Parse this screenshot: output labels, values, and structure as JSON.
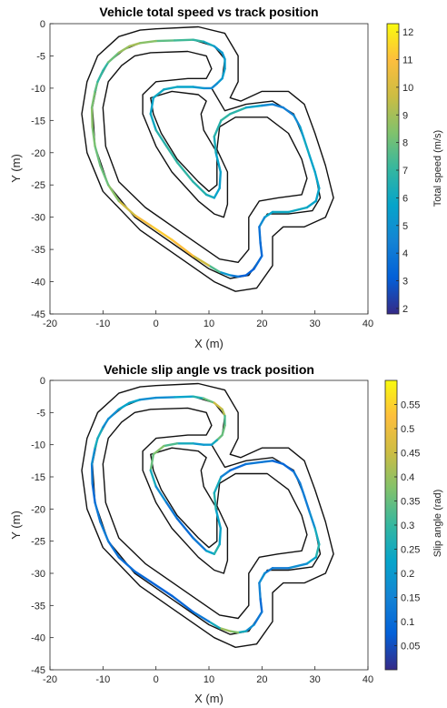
{
  "chart_data": [
    {
      "type": "line",
      "title": "Vehicle total speed vs track position",
      "xlabel": "X (m)",
      "ylabel": "Y (m)",
      "xlim": [
        -20,
        40
      ],
      "ylim": [
        -45,
        0
      ],
      "xticks": [
        "-20",
        "-10",
        "0",
        "10",
        "20",
        "30",
        "40"
      ],
      "yticks": [
        "0",
        "-5",
        "-10",
        "-15",
        "-20",
        "-25",
        "-30",
        "-35",
        "-40",
        "-45"
      ],
      "colorbar": {
        "label": "Total speed (m/s)",
        "range": [
          1.8,
          12.3
        ],
        "ticks": [
          "2",
          "3",
          "4",
          "5",
          "6",
          "7",
          "8",
          "9",
          "10",
          "11",
          "12"
        ],
        "colormap": "parula"
      },
      "track": {
        "outer": [
          [
            0,
            -0.8
          ],
          [
            8,
            -0.5
          ],
          [
            13,
            -1.5
          ],
          [
            15.5,
            -5
          ],
          [
            15.5,
            -9
          ],
          [
            14,
            -11.5
          ],
          [
            16,
            -12
          ],
          [
            20,
            -10.5
          ],
          [
            25,
            -10.5
          ],
          [
            28,
            -12.5
          ],
          [
            30,
            -17
          ],
          [
            32,
            -22
          ],
          [
            33.5,
            -27
          ],
          [
            32,
            -30
          ],
          [
            28,
            -31.5
          ],
          [
            24,
            -31.5
          ],
          [
            22,
            -33
          ],
          [
            22,
            -37.5
          ],
          [
            19,
            -41
          ],
          [
            15,
            -41.5
          ],
          [
            11,
            -40
          ],
          [
            4,
            -36
          ],
          [
            -3,
            -32
          ],
          [
            -10,
            -26
          ],
          [
            -13,
            -20
          ],
          [
            -14,
            -14
          ],
          [
            -13,
            -9
          ],
          [
            -11,
            -5
          ],
          [
            -7,
            -2
          ],
          [
            -3,
            -1
          ]
        ],
        "middle": [
          [
            0,
            -2.7
          ],
          [
            7,
            -2.5
          ],
          [
            11,
            -3.5
          ],
          [
            13,
            -5.5
          ],
          [
            12.5,
            -8.5
          ],
          [
            10.5,
            -10
          ],
          [
            13,
            -13.5
          ],
          [
            17,
            -12.5
          ],
          [
            22,
            -12
          ],
          [
            26,
            -14
          ],
          [
            28,
            -18
          ],
          [
            30,
            -23
          ],
          [
            31,
            -27
          ],
          [
            29.5,
            -29
          ],
          [
            25,
            -29.5
          ],
          [
            21,
            -29.5
          ],
          [
            19.5,
            -31.5
          ],
          [
            20,
            -36
          ],
          [
            17.5,
            -39
          ],
          [
            14,
            -39.5
          ],
          [
            10,
            -38
          ],
          [
            3,
            -34
          ],
          [
            -4,
            -30
          ],
          [
            -9,
            -25
          ],
          [
            -11.5,
            -19
          ],
          [
            -12,
            -13
          ],
          [
            -11,
            -9
          ],
          [
            -9,
            -6
          ],
          [
            -6,
            -4
          ],
          [
            -3,
            -3
          ]
        ],
        "inner": [
          [
            -1,
            -4.5
          ],
          [
            6,
            -4.3
          ],
          [
            9.5,
            -5
          ],
          [
            10.5,
            -7
          ],
          [
            9.5,
            -8.5
          ],
          [
            6,
            -8.5
          ],
          [
            0,
            -9
          ],
          [
            -2.5,
            -11
          ],
          [
            -2.5,
            -14
          ],
          [
            0,
            -19
          ],
          [
            3,
            -23
          ],
          [
            8,
            -27.5
          ],
          [
            11,
            -29.5
          ],
          [
            12.8,
            -30
          ],
          [
            13.5,
            -28
          ],
          [
            13.5,
            -23
          ],
          [
            11.5,
            -19.5
          ],
          [
            12,
            -16
          ],
          [
            15,
            -14.5
          ],
          [
            21,
            -14.5
          ],
          [
            25,
            -17
          ],
          [
            27.5,
            -21
          ],
          [
            28.5,
            -24
          ],
          [
            27.5,
            -26.5
          ],
          [
            23,
            -27
          ],
          [
            19.5,
            -27.5
          ],
          [
            17.5,
            -30
          ],
          [
            17.5,
            -35
          ],
          [
            15.5,
            -37
          ],
          [
            12,
            -36.5
          ],
          [
            5,
            -32.5
          ],
          [
            -2,
            -28.5
          ],
          [
            -7,
            -24.5
          ],
          [
            -9.5,
            -19
          ],
          [
            -10,
            -13
          ],
          [
            -9,
            -9
          ],
          [
            -6.5,
            -6.5
          ],
          [
            -4,
            -5
          ]
        ],
        "infield": [
          [
            -1,
            -11.5
          ],
          [
            3,
            -10.5
          ],
          [
            8,
            -11
          ],
          [
            9.5,
            -12
          ],
          [
            8.5,
            -14
          ],
          [
            9,
            -16.5
          ],
          [
            11.5,
            -20
          ],
          [
            11.5,
            -25
          ],
          [
            10,
            -26
          ],
          [
            8,
            -24.5
          ],
          [
            4,
            -21
          ],
          [
            1,
            -17
          ],
          [
            -0.5,
            -14
          ]
        ]
      },
      "trajectory": [
        [
          0,
          -2.7,
          8.0
        ],
        [
          3.5,
          -2.6,
          7.5
        ],
        [
          7,
          -2.5,
          7.0
        ],
        [
          9,
          -2.8,
          6.8
        ],
        [
          11,
          -3.5,
          5.5
        ],
        [
          12.5,
          -4.5,
          5.0
        ],
        [
          13,
          -5.5,
          5.5
        ],
        [
          13,
          -7,
          5.5
        ],
        [
          12.5,
          -8.5,
          5.5
        ],
        [
          11.5,
          -9.3,
          5.0
        ],
        [
          10.5,
          -10,
          4.5
        ],
        [
          9,
          -10,
          5.0
        ],
        [
          7,
          -9.8,
          5.5
        ],
        [
          4,
          -9.8,
          6.0
        ],
        [
          1.5,
          -10.2,
          6.0
        ],
        [
          -0.5,
          -11.5,
          6.0
        ],
        [
          -1,
          -14,
          5.5
        ],
        [
          0,
          -16.5,
          6.5
        ],
        [
          2,
          -19,
          6.8
        ],
        [
          4,
          -21.5,
          7.0
        ],
        [
          7,
          -24.5,
          6.8
        ],
        [
          9.5,
          -26.5,
          6.5
        ],
        [
          11,
          -27,
          6.0
        ],
        [
          12,
          -25.5,
          5.5
        ],
        [
          12.2,
          -23,
          5.5
        ],
        [
          11.3,
          -20,
          6.0
        ],
        [
          11,
          -17.5,
          6.5
        ],
        [
          12.3,
          -15,
          6.8
        ],
        [
          14,
          -14,
          7.0
        ],
        [
          17,
          -13,
          6.5
        ],
        [
          20,
          -12.7,
          5.0
        ],
        [
          22,
          -12.5,
          4.5
        ],
        [
          24,
          -13,
          4.0
        ],
        [
          26,
          -14.2,
          4.5
        ],
        [
          27.2,
          -16,
          5.0
        ],
        [
          28,
          -18,
          6.0
        ],
        [
          29,
          -20.5,
          6.0
        ],
        [
          30,
          -23,
          5.5
        ],
        [
          30.8,
          -25.5,
          6.0
        ],
        [
          30.2,
          -27.5,
          5.5
        ],
        [
          28.5,
          -28.5,
          6.0
        ],
        [
          25,
          -29.2,
          6.0
        ],
        [
          22,
          -29.2,
          6.0
        ],
        [
          20.5,
          -30,
          5.5
        ],
        [
          19.5,
          -31.5,
          4.0
        ],
        [
          19.7,
          -34,
          3.5
        ],
        [
          20,
          -36,
          3.5
        ],
        [
          18.5,
          -38,
          3.5
        ],
        [
          17,
          -39,
          2.8
        ],
        [
          15.5,
          -39.2,
          3.5
        ],
        [
          14,
          -39,
          4.5
        ],
        [
          12,
          -38.5,
          6.0
        ],
        [
          10,
          -37.5,
          9.0
        ],
        [
          7,
          -36,
          10.5
        ],
        [
          3,
          -33.5,
          11.5
        ],
        [
          -1,
          -31.3,
          11.0
        ],
        [
          -4,
          -29.7,
          10.5
        ],
        [
          -7,
          -27.5,
          9.0
        ],
        [
          -9,
          -25,
          8.0
        ],
        [
          -10.5,
          -22,
          8.0
        ],
        [
          -11.5,
          -19,
          8.0
        ],
        [
          -12,
          -16,
          8.5
        ],
        [
          -12.1,
          -13,
          8.5
        ],
        [
          -11.5,
          -10.5,
          8.0
        ],
        [
          -11,
          -9,
          7.5
        ],
        [
          -10,
          -7.3,
          6.5
        ],
        [
          -9,
          -6,
          7.5
        ],
        [
          -7,
          -4.5,
          8.5
        ],
        [
          -5,
          -3.5,
          9.0
        ],
        [
          -3,
          -3,
          9.0
        ],
        [
          0,
          -2.7,
          8.0
        ]
      ]
    },
    {
      "type": "line",
      "title": "Vehicle slip angle vs track position",
      "xlabel": "X (m)",
      "ylabel": "Y (m)",
      "xlim": [
        -20,
        40
      ],
      "ylim": [
        -45,
        0
      ],
      "xticks": [
        "-20",
        "-10",
        "0",
        "10",
        "20",
        "30",
        "40"
      ],
      "yticks": [
        "0",
        "-5",
        "-10",
        "-15",
        "-20",
        "-25",
        "-30",
        "-35",
        "-40",
        "-45"
      ],
      "colorbar": {
        "label": "Slip angle (rad)",
        "range": [
          0,
          0.6
        ],
        "ticks": [
          "0.05",
          "0.1",
          "0.15",
          "0.2",
          "0.25",
          "0.3",
          "0.35",
          "0.4",
          "0.45",
          "0.5",
          "0.55"
        ],
        "colormap": "parula"
      },
      "trajectory": [
        [
          0,
          -2.7,
          0.15
        ],
        [
          3.5,
          -2.6,
          0.2
        ],
        [
          7,
          -2.5,
          0.25
        ],
        [
          9,
          -2.8,
          0.3
        ],
        [
          11,
          -3.5,
          0.4
        ],
        [
          12.5,
          -4.5,
          0.5
        ],
        [
          13,
          -5.5,
          0.35
        ],
        [
          13,
          -7,
          0.3
        ],
        [
          12.5,
          -8.5,
          0.4
        ],
        [
          11.5,
          -9.3,
          0.3
        ],
        [
          10.5,
          -10,
          0.2
        ],
        [
          9,
          -10,
          0.2
        ],
        [
          7,
          -9.8,
          0.2
        ],
        [
          4,
          -9.8,
          0.3
        ],
        [
          1.5,
          -10.2,
          0.35
        ],
        [
          -0.5,
          -11.5,
          0.4
        ],
        [
          -1,
          -14,
          0.3
        ],
        [
          0,
          -16.5,
          0.2
        ],
        [
          2,
          -19,
          0.15
        ],
        [
          4,
          -21.5,
          0.1
        ],
        [
          7,
          -24.5,
          0.1
        ],
        [
          9.5,
          -26.5,
          0.15
        ],
        [
          11,
          -27,
          0.3
        ],
        [
          12,
          -25.5,
          0.25
        ],
        [
          12.2,
          -23,
          0.2
        ],
        [
          11.3,
          -20,
          0.25
        ],
        [
          11,
          -17.5,
          0.3
        ],
        [
          12.3,
          -15,
          0.2
        ],
        [
          14,
          -14,
          0.1
        ],
        [
          17,
          -13,
          0.1
        ],
        [
          20,
          -12.7,
          0.15
        ],
        [
          22,
          -12.5,
          0.1
        ],
        [
          24,
          -13,
          0.08
        ],
        [
          26,
          -14.2,
          0.1
        ],
        [
          27.2,
          -16,
          0.15
        ],
        [
          28,
          -18,
          0.12
        ],
        [
          29,
          -20.5,
          0.15
        ],
        [
          30,
          -23,
          0.2
        ],
        [
          30.8,
          -25.5,
          0.3
        ],
        [
          30.2,
          -27.5,
          0.25
        ],
        [
          28.5,
          -28.5,
          0.2
        ],
        [
          25,
          -29.2,
          0.15
        ],
        [
          22,
          -29.2,
          0.12
        ],
        [
          20.5,
          -30,
          0.15
        ],
        [
          19.5,
          -31.5,
          0.2
        ],
        [
          19.7,
          -34,
          0.1
        ],
        [
          20,
          -36,
          0.1
        ],
        [
          18.5,
          -38,
          0.15
        ],
        [
          17,
          -39,
          0.2
        ],
        [
          15.5,
          -39.2,
          0.3
        ],
        [
          14,
          -39,
          0.45
        ],
        [
          12,
          -38.5,
          0.35
        ],
        [
          10,
          -37.5,
          0.15
        ],
        [
          7,
          -36,
          0.1
        ],
        [
          3,
          -33.5,
          0.08
        ],
        [
          -1,
          -31.3,
          0.08
        ],
        [
          -4,
          -29.7,
          0.1
        ],
        [
          -7,
          -27.5,
          0.1
        ],
        [
          -9,
          -25,
          0.12
        ],
        [
          -10.5,
          -22,
          0.15
        ],
        [
          -11.5,
          -19,
          0.1
        ],
        [
          -12,
          -16,
          0.1
        ],
        [
          -12.1,
          -13,
          0.15
        ],
        [
          -11.5,
          -10.5,
          0.2
        ],
        [
          -11,
          -9,
          0.3
        ],
        [
          -10,
          -7.3,
          0.2
        ],
        [
          -9,
          -6,
          0.15
        ],
        [
          -7,
          -4.5,
          0.2
        ],
        [
          -5,
          -3.5,
          0.25
        ],
        [
          -3,
          -3,
          0.2
        ],
        [
          0,
          -2.7,
          0.15
        ]
      ]
    }
  ]
}
